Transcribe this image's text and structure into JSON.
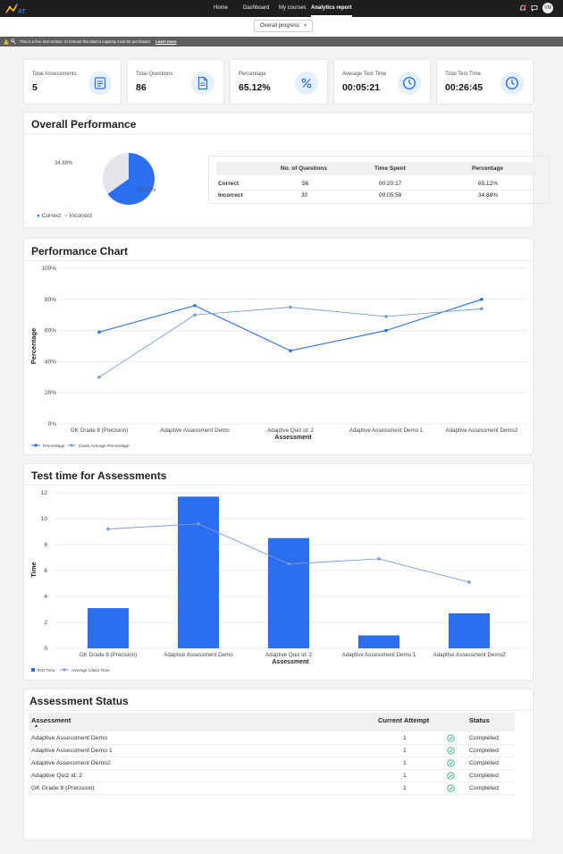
{
  "nav": {
    "items": [
      "Home",
      "Dashboard",
      "My courses",
      "Analytics report"
    ],
    "active": "Analytics report",
    "avatar_initials": "VM"
  },
  "filter": {
    "selected": "Overall progress"
  },
  "banner": {
    "text": "This is a free trial version, to remove this label a capacity must be purchased.",
    "link": "Learn more"
  },
  "stats": [
    {
      "label": "Total Assessments",
      "value": "5",
      "icon": "list-icon"
    },
    {
      "label": "Total Questions",
      "value": "86",
      "icon": "document-icon"
    },
    {
      "label": "Percentage",
      "value": "65.12%",
      "icon": "percent-icon"
    },
    {
      "label": "Average Test Time",
      "value": "00:05:21",
      "icon": "clock-icon"
    },
    {
      "label": "Total Test Time",
      "value": "00:26:45",
      "icon": "clock-icon"
    }
  ],
  "overall": {
    "title": "Overall Performance",
    "pie_labels": {
      "incorrect": "34.88%",
      "correct": "65.12%"
    },
    "legend": [
      "Correct",
      "Incorrect"
    ],
    "table": {
      "headers": [
        "No. of Questions",
        "Time Spent",
        "Percentage"
      ],
      "rows": [
        {
          "label": "Correct",
          "questions": "56",
          "time": "00:20:17",
          "percentage": "65.12%"
        },
        {
          "label": "Incorrect",
          "questions": "30",
          "time": "00:05:59",
          "percentage": "34.88%"
        }
      ]
    }
  },
  "perf_chart": {
    "title": "Performance Chart",
    "ylabel": "Percentage",
    "xlabel": "Assessment",
    "yticks": [
      "100%",
      "80%",
      "60%",
      "40%",
      "20%",
      "0%"
    ]
  },
  "time_chart": {
    "title": "Test time for Assessments",
    "ylabel": "Time",
    "xlabel": "Assessment",
    "yticks": [
      "12",
      "10",
      "8",
      "6",
      "4",
      "2",
      "0"
    ]
  },
  "status": {
    "title": "Assessment Status",
    "headers": {
      "assessment": "Assessment",
      "attempt": "Current Attempt",
      "status": "Status"
    },
    "rows": [
      {
        "name": "Adaptive Assessment Demo",
        "attempt": "1",
        "status": "Completed"
      },
      {
        "name": "Adaptive Assessment Demo 1",
        "attempt": "1",
        "status": "Completed"
      },
      {
        "name": "Adaptive Assessment Demo2",
        "attempt": "1",
        "status": "Completed"
      },
      {
        "name": "Adaptive Quiz id: 2",
        "attempt": "1",
        "status": "Completed"
      },
      {
        "name": "GK Grade 8 (Precision)",
        "attempt": "1",
        "status": "Completed"
      }
    ]
  },
  "colors": {
    "primary": "#2b6ef0",
    "secondary": "#7a9bd8",
    "check": "#2ab673"
  },
  "chart_data": [
    {
      "type": "pie",
      "categories": [
        "Correct",
        "Incorrect"
      ],
      "values": [
        65.12,
        34.88
      ],
      "colors": [
        "#2b6ef0",
        "#e2e4ea"
      ],
      "legend": "bottom"
    },
    {
      "type": "line",
      "title": "Performance Chart",
      "xlabel": "Assessment",
      "ylabel": "Percentage",
      "categories": [
        "GK Grade 8 (Precision)",
        "Adaptive Assessment Demo",
        "Adaptive Quiz id: 2",
        "Adaptive Assessment Demo 1",
        "Adaptive Assessment Demo2"
      ],
      "series": [
        {
          "name": "Percentage",
          "values": [
            59,
            76,
            47,
            60,
            80
          ],
          "color": "#2b6ef0"
        },
        {
          "name": "Class Average Percentage",
          "values": [
            30,
            70,
            75,
            69,
            74
          ],
          "color": "#7a9bd8"
        }
      ],
      "ylim": [
        0,
        100
      ],
      "grid": true,
      "legend": "bottom-left"
    },
    {
      "type": "bar",
      "title": "Test time for Assessments",
      "xlabel": "Assessment",
      "ylabel": "Time",
      "categories": [
        "GK Grade 8 (Precision)",
        "Adaptive Assessment Demo",
        "Adaptive Quiz id: 2",
        "Adaptive Assessment Demo 1",
        "Adaptive Assessment Demo2"
      ],
      "series": [
        {
          "name": "Test Time",
          "type": "bar",
          "values": [
            3.1,
            11.7,
            8.5,
            1.0,
            2.7
          ],
          "color": "#2b6ef0"
        },
        {
          "name": "Average Class Time",
          "type": "line",
          "values": [
            9.2,
            9.6,
            6.5,
            6.9,
            5.1
          ],
          "color": "#7a9bd8"
        }
      ],
      "ylim": [
        0,
        12
      ],
      "grid": true,
      "legend": "bottom-left"
    }
  ]
}
